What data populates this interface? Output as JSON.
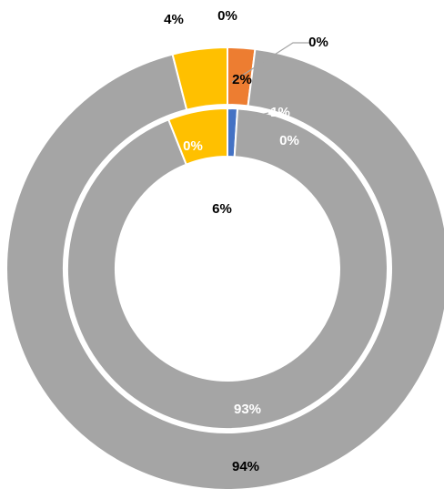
{
  "chart_data": {
    "type": "doughnut",
    "colors": [
      "#4472c4",
      "#ed7d31",
      "#5b9bd5",
      "#a5a5a5",
      "#ffc000"
    ],
    "series": [
      {
        "values": [
          0,
          2,
          0,
          94,
          4
        ],
        "value_labels": [
          "0%",
          "2%",
          "0%",
          "94%",
          "4%"
        ]
      },
      {
        "values": [
          1,
          0,
          0,
          93,
          6
        ],
        "value_labels": [
          "1%",
          "0%",
          "0%",
          "93%",
          "6%"
        ]
      }
    ]
  }
}
